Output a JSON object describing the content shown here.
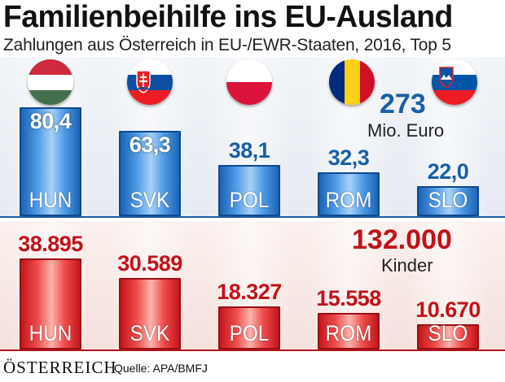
{
  "title": "Familienbeihilfe ins EU-Ausland",
  "subtitle": "Zahlungen aus Österreich in EU-/EWR-Staaten, 2016, Top 5",
  "chart_data": [
    {
      "type": "bar",
      "categories": [
        "HUN",
        "SVK",
        "POL",
        "ROM",
        "SLO"
      ],
      "values": [
        80.4,
        63.3,
        38.1,
        32.3,
        22.0
      ],
      "value_labels": [
        "80,4",
        "63,3",
        "38,1",
        "32,3",
        "22,0"
      ],
      "total_label": "273",
      "total_unit": "Mio. Euro",
      "color": "#1a5fa5"
    },
    {
      "type": "bar",
      "categories": [
        "HUN",
        "SVK",
        "POL",
        "ROM",
        "SLO"
      ],
      "values": [
        38895,
        30589,
        18327,
        15558,
        10670
      ],
      "value_labels": [
        "38.895",
        "30.589",
        "18.327",
        "15.558",
        "10.670"
      ],
      "total_label": "132.000",
      "total_unit": "Kinder",
      "color": "#c1121a"
    }
  ],
  "flags": [
    "hungary-flag-icon",
    "slovakia-flag-icon",
    "poland-flag-icon",
    "romania-flag-icon",
    "slovenia-flag-icon"
  ],
  "footer": {
    "publisher": "ÖSTERREICH",
    "source": "Quelle: APA/BMFJ"
  }
}
